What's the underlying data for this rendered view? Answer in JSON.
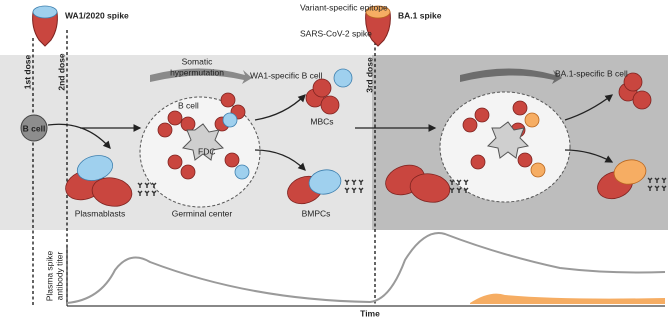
{
  "top": {
    "wa1_spike": "WA1/2020 spike",
    "variant_epitope": "Variant-specific epitope",
    "sars_spike": "SARS-CoV-2 spike",
    "ba1_spike": "BA.1 spike"
  },
  "doses": [
    "1st dose",
    "2nd dose",
    "3rd dose"
  ],
  "labels": {
    "b_cell": "B cell",
    "somatic": "Somatic",
    "hypermutation": "hypermutation",
    "wa1_b_cell": "WA1-specific B cell",
    "gc_b_cell": "B cell",
    "fdc": "FDC",
    "mbcs": "MBCs",
    "plasmablasts": "Plasmablasts",
    "germinal_center": "Germinal center",
    "bmpcs": "BMPCs",
    "ba1_b_cell": "BA.1-specific B cell"
  },
  "plot": {
    "y_label_1": "Plasma spike",
    "y_label_2": "antibody titer",
    "x_label": "Time"
  }
}
